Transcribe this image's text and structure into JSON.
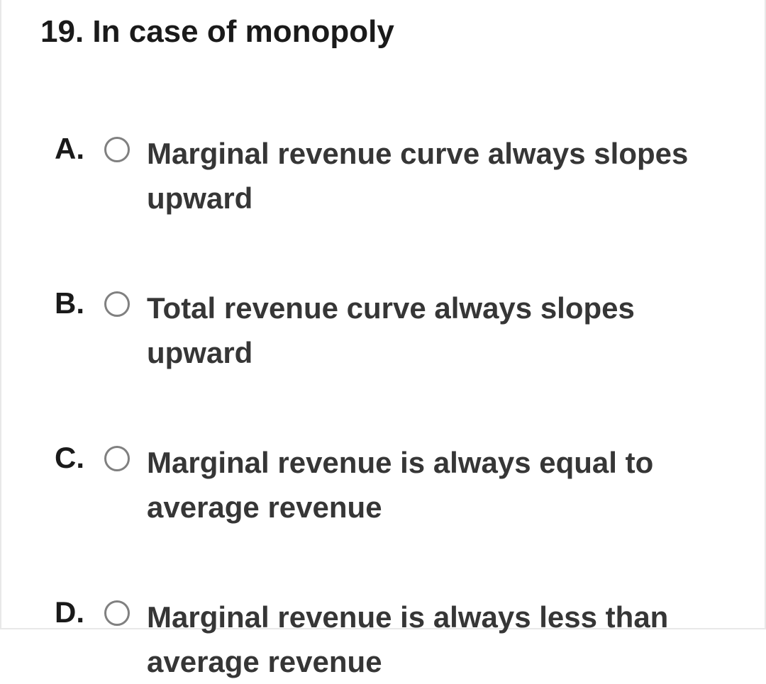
{
  "question": {
    "number": "19.",
    "text": "In case of monopoly",
    "title_fontsize": 44,
    "title_color": "#1a1a1a"
  },
  "options": [
    {
      "letter": "A.",
      "text": "Marginal revenue curve always slopes upward",
      "selected": false
    },
    {
      "letter": "B.",
      "text": "Total revenue curve always slopes upward",
      "selected": false
    },
    {
      "letter": "C.",
      "text": "Marginal revenue is always equal to average revenue",
      "selected": false
    },
    {
      "letter": "D.",
      "text": "Marginal revenue is always less than average revenue",
      "selected": false
    }
  ],
  "styling": {
    "background_color": "#ffffff",
    "border_color": "#e8e8e8",
    "radio_border_color": "#808080",
    "option_text_color": "#363636",
    "option_fontsize": 42,
    "letter_fontsize": 42,
    "radio_size": 36
  }
}
